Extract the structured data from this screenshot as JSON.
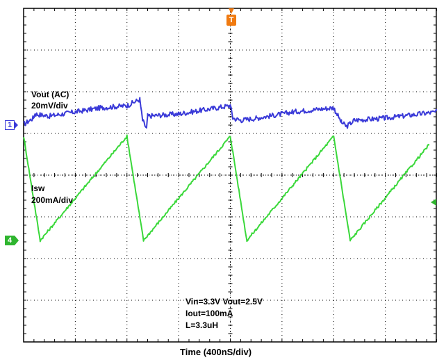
{
  "chart_data": {
    "type": "line",
    "xlabel": "Time  (400nS/div)",
    "x_per_div_ns": 400,
    "divisions": {
      "x": 8,
      "y": 8
    },
    "grid": true,
    "trigger_label": "T",
    "series": [
      {
        "name": "Vout (AC)",
        "scale": "20mV/div",
        "channel": "1",
        "color": "#3a3ad8",
        "x": [
          0,
          0.18,
          0.22,
          0.5,
          1.0,
          1.5,
          2.0,
          2.25,
          2.3,
          2.38,
          2.4,
          3.0,
          4.0,
          4.05,
          4.2,
          4.5,
          5.0,
          5.2,
          6.0,
          6.15,
          6.25,
          6.4,
          7.0,
          8.0
        ],
        "values": [
          0,
          0.15,
          0.25,
          0.2,
          0.3,
          0.4,
          0.45,
          0.6,
          0.1,
          -0.1,
          0.2,
          0.25,
          0.45,
          0.15,
          0.1,
          0.15,
          0.25,
          0.3,
          0.4,
          0.05,
          -0.05,
          0.1,
          0.15,
          0.3
        ]
      },
      {
        "name": "Isw",
        "scale": "200mA/div",
        "channel": "4",
        "color": "#3ad83a",
        "x": [
          0,
          0.32,
          2.0,
          2.32,
          4.0,
          4.32,
          6.0,
          6.32,
          7.85
        ],
        "values": [
          2.5,
          0,
          2.5,
          0,
          2.5,
          0,
          2.5,
          0,
          2.3
        ]
      }
    ],
    "annotations": [
      "Vin=3.3V  Vout=2.5V",
      "Iout=100mA",
      "L=3.3uH"
    ]
  }
}
